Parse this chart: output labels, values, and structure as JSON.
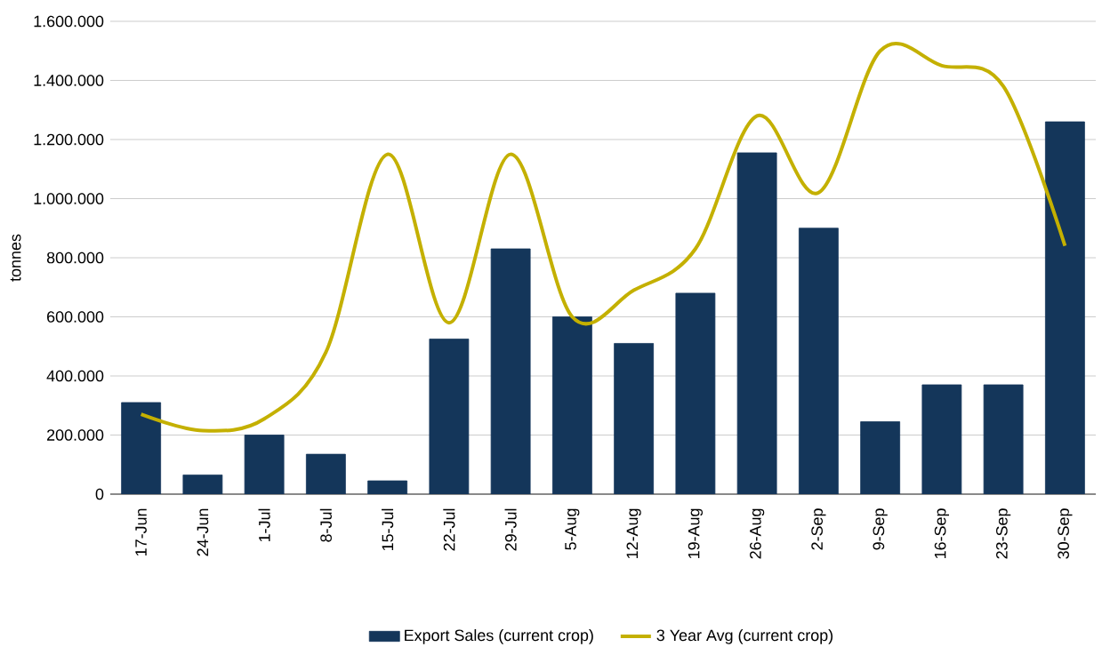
{
  "chart_data": {
    "type": "bar",
    "ylabel": "tonnes",
    "categories": [
      "17-Jun",
      "24-Jun",
      "1-Jul",
      "8-Jul",
      "15-Jul",
      "22-Jul",
      "29-Jul",
      "5-Aug",
      "12-Aug",
      "19-Aug",
      "26-Aug",
      "2-Sep",
      "9-Sep",
      "16-Sep",
      "23-Sep",
      "30-Sep"
    ],
    "series": [
      {
        "name": "Export Sales (current crop)",
        "color": "#14365a",
        "values": [
          310000,
          65000,
          200000,
          135000,
          45000,
          525000,
          830000,
          600000,
          510000,
          680000,
          1155000,
          900000,
          245000,
          370000,
          370000,
          1260000
        ]
      },
      {
        "name": "3 Year Avg (current crop)",
        "type": "line",
        "color": "#c4b000",
        "values": [
          270000,
          215000,
          255000,
          480000,
          1150000,
          580000,
          1150000,
          600000,
          690000,
          830000,
          1280000,
          1020000,
          1500000,
          1450000,
          1380000,
          840000
        ]
      }
    ],
    "ylim": [
      0,
      1600000
    ],
    "yticks": [
      0,
      {
        "value": 200000,
        "label": "200.000"
      },
      {
        "value": 400000,
        "label": "400.000"
      },
      {
        "value": 600000,
        "label": "600.000"
      },
      {
        "value": 800000,
        "label": "800.000"
      },
      {
        "value": 1000000,
        "label": "1.000.000"
      },
      {
        "value": 1200000,
        "label": "1.200.000"
      },
      {
        "value": 1400000,
        "label": "1.400.000"
      },
      {
        "value": 1600000,
        "label": "1.600.000"
      }
    ],
    "grid": "y",
    "legend": "bottom",
    "marker": "none",
    "line_style": "solid"
  }
}
